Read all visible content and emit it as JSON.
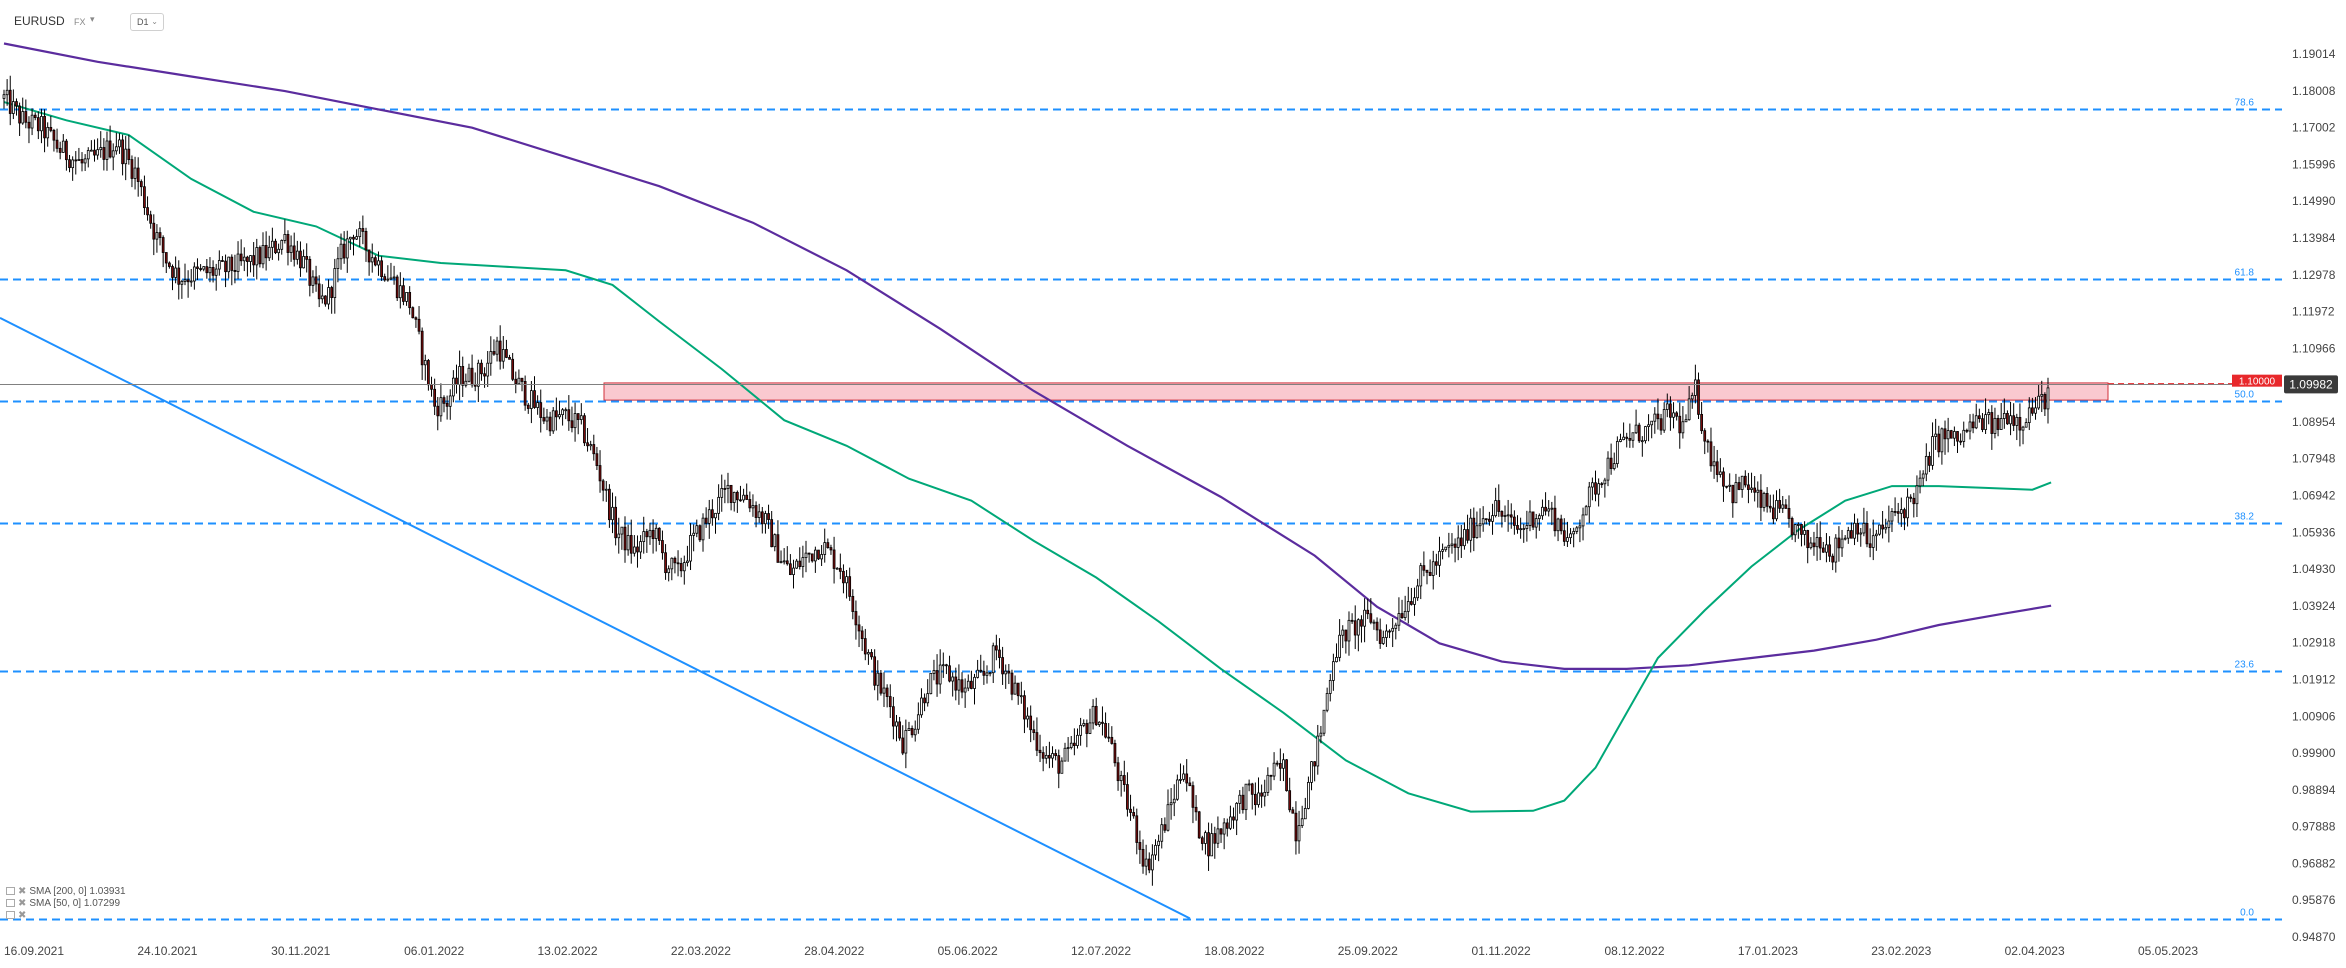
{
  "toolbar": {
    "symbol": "EURUSD",
    "market": "FX",
    "timeframe": "D1"
  },
  "legend": {
    "items": [
      {
        "label": "SMA [200, 0] 1.03931",
        "color": "#5b2c9e"
      },
      {
        "label": "SMA [50, 0] 1.07299",
        "color": "#00a878"
      },
      {
        "label": "",
        "color": "#1e90ff"
      }
    ]
  },
  "colors": {
    "bull": "#ffffff",
    "bear": "#000000",
    "bear_fill": "#7a0c0c",
    "wick": "#000000",
    "sma200": "#5b2c9e",
    "sma50": "#00a878",
    "fib": "#1e90ff",
    "trendline": "#1e90ff",
    "zone_fill": "#f8b7c0",
    "zone_border": "#d0303a",
    "price_line": "#808080",
    "tag_red": "#e8282b",
    "tag_dark": "#3a3a3a",
    "countdown": "#f0a020"
  },
  "chart_data": {
    "type": "candlestick",
    "symbol": "EURUSD",
    "timeframe": "D1",
    "ylim": [
      0.9487,
      1.19014
    ],
    "y_ticks": [
      "1.19014",
      "1.18008",
      "1.17002",
      "1.15996",
      "1.14990",
      "1.13984",
      "1.12978",
      "1.11972",
      "1.10966",
      "1.09960",
      "1.08954",
      "1.07948",
      "1.06942",
      "1.05936",
      "1.04930",
      "1.03924",
      "1.02918",
      "1.01912",
      "1.00906",
      "0.99900",
      "0.98894",
      "0.97888",
      "0.96882",
      "0.95876",
      "0.94870"
    ],
    "x_labels": [
      "16.09.2021",
      "24.10.2021",
      "30.11.2021",
      "06.01.2022",
      "13.02.2022",
      "22.03.2022",
      "28.04.2022",
      "05.06.2022",
      "12.07.2022",
      "18.08.2022",
      "25.09.2022",
      "01.11.2022",
      "08.12.2022",
      "17.01.2023",
      "23.02.2023",
      "02.04.2023",
      "05.05.2023"
    ],
    "fib_levels": [
      {
        "label": "78.6",
        "price": 1.175
      },
      {
        "label": "61.8",
        "price": 1.1285
      },
      {
        "label": "50.0",
        "price": 1.0953
      },
      {
        "label": "38.2",
        "price": 1.062
      },
      {
        "label": "23.6",
        "price": 1.0213
      },
      {
        "label": "0.0",
        "price": 0.9535
      }
    ],
    "resistance_zone": {
      "top": 1.1002,
      "bottom": 1.0955
    },
    "price_tags": [
      {
        "label": "1.10000",
        "price": 1.1,
        "color": "#e8282b"
      },
      {
        "label": "1.09982",
        "price": 1.09982,
        "color": "#3a3a3a"
      }
    ],
    "countdown": "",
    "anchors": [
      [
        0,
        1.178
      ],
      [
        6,
        1.172
      ],
      [
        12,
        1.17
      ],
      [
        18,
        1.164
      ],
      [
        25,
        1.16
      ],
      [
        30,
        1.162
      ],
      [
        36,
        1.166
      ],
      [
        42,
        1.158
      ],
      [
        48,
        1.142
      ],
      [
        52,
        1.134
      ],
      [
        56,
        1.129
      ],
      [
        62,
        1.13
      ],
      [
        70,
        1.131
      ],
      [
        78,
        1.133
      ],
      [
        85,
        1.136
      ],
      [
        90,
        1.14
      ],
      [
        96,
        1.133
      ],
      [
        101,
        1.122
      ],
      [
        104,
        1.124
      ],
      [
        108,
        1.135
      ],
      [
        112,
        1.142
      ],
      [
        118,
        1.135
      ],
      [
        124,
        1.129
      ],
      [
        130,
        1.122
      ],
      [
        134,
        1.108
      ],
      [
        138,
        1.094
      ],
      [
        142,
        1.095
      ],
      [
        146,
        1.102
      ],
      [
        150,
        1.102
      ],
      [
        154,
        1.104
      ],
      [
        158,
        1.111
      ],
      [
        163,
        1.102
      ],
      [
        168,
        1.096
      ],
      [
        174,
        1.09
      ],
      [
        180,
        1.091
      ],
      [
        185,
        1.088
      ],
      [
        190,
        1.078
      ],
      [
        196,
        1.06
      ],
      [
        202,
        1.054
      ],
      [
        208,
        1.06
      ],
      [
        212,
        1.051
      ],
      [
        216,
        1.048
      ],
      [
        220,
        1.056
      ],
      [
        226,
        1.064
      ],
      [
        232,
        1.071
      ],
      [
        238,
        1.069
      ],
      [
        244,
        1.062
      ],
      [
        248,
        1.054
      ],
      [
        252,
        1.048
      ],
      [
        256,
        1.052
      ],
      [
        262,
        1.056
      ],
      [
        268,
        1.05
      ],
      [
        272,
        1.04
      ],
      [
        276,
        1.028
      ],
      [
        280,
        1.018
      ],
      [
        284,
        1.012
      ],
      [
        288,
        1.002
      ],
      [
        292,
        1.008
      ],
      [
        296,
        1.018
      ],
      [
        302,
        1.021
      ],
      [
        308,
        1.016
      ],
      [
        314,
        1.02
      ],
      [
        318,
        1.027
      ],
      [
        322,
        1.02
      ],
      [
        326,
        1.012
      ],
      [
        330,
        1.004
      ],
      [
        334,
        0.998
      ],
      [
        338,
        0.996
      ],
      [
        342,
        0.999
      ],
      [
        346,
        1.006
      ],
      [
        350,
        1.01
      ],
      [
        354,
        1.003
      ],
      [
        358,
        0.99
      ],
      [
        362,
        0.98
      ],
      [
        366,
        0.968
      ],
      [
        370,
        0.975
      ],
      [
        374,
        0.985
      ],
      [
        378,
        0.996
      ],
      [
        382,
        0.98
      ],
      [
        386,
        0.974
      ],
      [
        390,
        0.978
      ],
      [
        394,
        0.983
      ],
      [
        398,
        0.988
      ],
      [
        402,
        0.986
      ],
      [
        406,
        0.993
      ],
      [
        410,
        0.995
      ],
      [
        414,
        0.978
      ],
      [
        418,
        0.99
      ],
      [
        422,
        1.005
      ],
      [
        426,
        1.026
      ],
      [
        430,
        1.032
      ],
      [
        434,
        1.034
      ],
      [
        438,
        1.036
      ],
      [
        442,
        1.03
      ],
      [
        446,
        1.036
      ],
      [
        450,
        1.041
      ],
      [
        454,
        1.047
      ],
      [
        458,
        1.05
      ],
      [
        462,
        1.054
      ],
      [
        466,
        1.056
      ],
      [
        470,
        1.06
      ],
      [
        474,
        1.064
      ],
      [
        478,
        1.066
      ],
      [
        482,
        1.062
      ],
      [
        486,
        1.06
      ],
      [
        490,
        1.064
      ],
      [
        494,
        1.066
      ],
      [
        498,
        1.062
      ],
      [
        502,
        1.056
      ],
      [
        506,
        1.066
      ],
      [
        510,
        1.072
      ],
      [
        514,
        1.078
      ],
      [
        518,
        1.083
      ],
      [
        522,
        1.086
      ],
      [
        526,
        1.087
      ],
      [
        530,
        1.089
      ],
      [
        534,
        1.092
      ],
      [
        538,
        1.088
      ],
      [
        542,
        1.098
      ],
      [
        546,
        1.082
      ],
      [
        550,
        1.076
      ],
      [
        554,
        1.07
      ],
      [
        558,
        1.073
      ],
      [
        562,
        1.068
      ],
      [
        566,
        1.066
      ],
      [
        570,
        1.064
      ],
      [
        574,
        1.06
      ],
      [
        578,
        1.056
      ],
      [
        582,
        1.058
      ],
      [
        586,
        1.054
      ],
      [
        590,
        1.059
      ],
      [
        594,
        1.062
      ],
      [
        598,
        1.056
      ],
      [
        602,
        1.06
      ],
      [
        606,
        1.064
      ],
      [
        610,
        1.067
      ],
      [
        614,
        1.072
      ],
      [
        618,
        1.083
      ],
      [
        622,
        1.086
      ],
      [
        626,
        1.084
      ],
      [
        630,
        1.088
      ],
      [
        634,
        1.09
      ],
      [
        638,
        1.088
      ],
      [
        642,
        1.092
      ],
      [
        646,
        1.09
      ],
      [
        650,
        1.093
      ],
      [
        652,
        1.094
      ],
      [
        655,
        1.0975
      ]
    ],
    "candle_count": 656,
    "sma50": [
      [
        0,
        1.177
      ],
      [
        20,
        1.172
      ],
      [
        40,
        1.168
      ],
      [
        60,
        1.156
      ],
      [
        80,
        1.147
      ],
      [
        100,
        1.143
      ],
      [
        120,
        1.135
      ],
      [
        140,
        1.133
      ],
      [
        160,
        1.132
      ],
      [
        180,
        1.131
      ],
      [
        195,
        1.127
      ],
      [
        210,
        1.117
      ],
      [
        230,
        1.104
      ],
      [
        250,
        1.09
      ],
      [
        270,
        1.083
      ],
      [
        290,
        1.074
      ],
      [
        310,
        1.068
      ],
      [
        330,
        1.057
      ],
      [
        350,
        1.047
      ],
      [
        370,
        1.035
      ],
      [
        390,
        1.022
      ],
      [
        410,
        1.01
      ],
      [
        430,
        0.997
      ],
      [
        450,
        0.988
      ],
      [
        470,
        0.983
      ],
      [
        490,
        0.9832
      ],
      [
        500,
        0.986
      ],
      [
        510,
        0.995
      ],
      [
        520,
        1.01
      ],
      [
        530,
        1.025
      ],
      [
        545,
        1.038
      ],
      [
        560,
        1.05
      ],
      [
        575,
        1.06
      ],
      [
        590,
        1.068
      ],
      [
        605,
        1.072
      ],
      [
        620,
        1.072
      ],
      [
        635,
        1.0715
      ],
      [
        650,
        1.071
      ],
      [
        656,
        1.073
      ]
    ],
    "sma200": [
      [
        0,
        1.193
      ],
      [
        30,
        1.188
      ],
      [
        60,
        1.184
      ],
      [
        90,
        1.18
      ],
      [
        120,
        1.175
      ],
      [
        150,
        1.17
      ],
      [
        180,
        1.162
      ],
      [
        210,
        1.154
      ],
      [
        240,
        1.144
      ],
      [
        270,
        1.131
      ],
      [
        300,
        1.115
      ],
      [
        330,
        1.098
      ],
      [
        360,
        1.083
      ],
      [
        390,
        1.069
      ],
      [
        420,
        1.053
      ],
      [
        440,
        1.039
      ],
      [
        460,
        1.029
      ],
      [
        480,
        1.024
      ],
      [
        500,
        1.022
      ],
      [
        520,
        1.022
      ],
      [
        540,
        1.023
      ],
      [
        560,
        1.025
      ],
      [
        580,
        1.027
      ],
      [
        600,
        1.03
      ],
      [
        620,
        1.034
      ],
      [
        640,
        1.037
      ],
      [
        656,
        1.0393
      ]
    ],
    "trendline": {
      "from": [
        0,
        1.118
      ],
      "to": [
        380,
        0.9538
      ]
    }
  }
}
